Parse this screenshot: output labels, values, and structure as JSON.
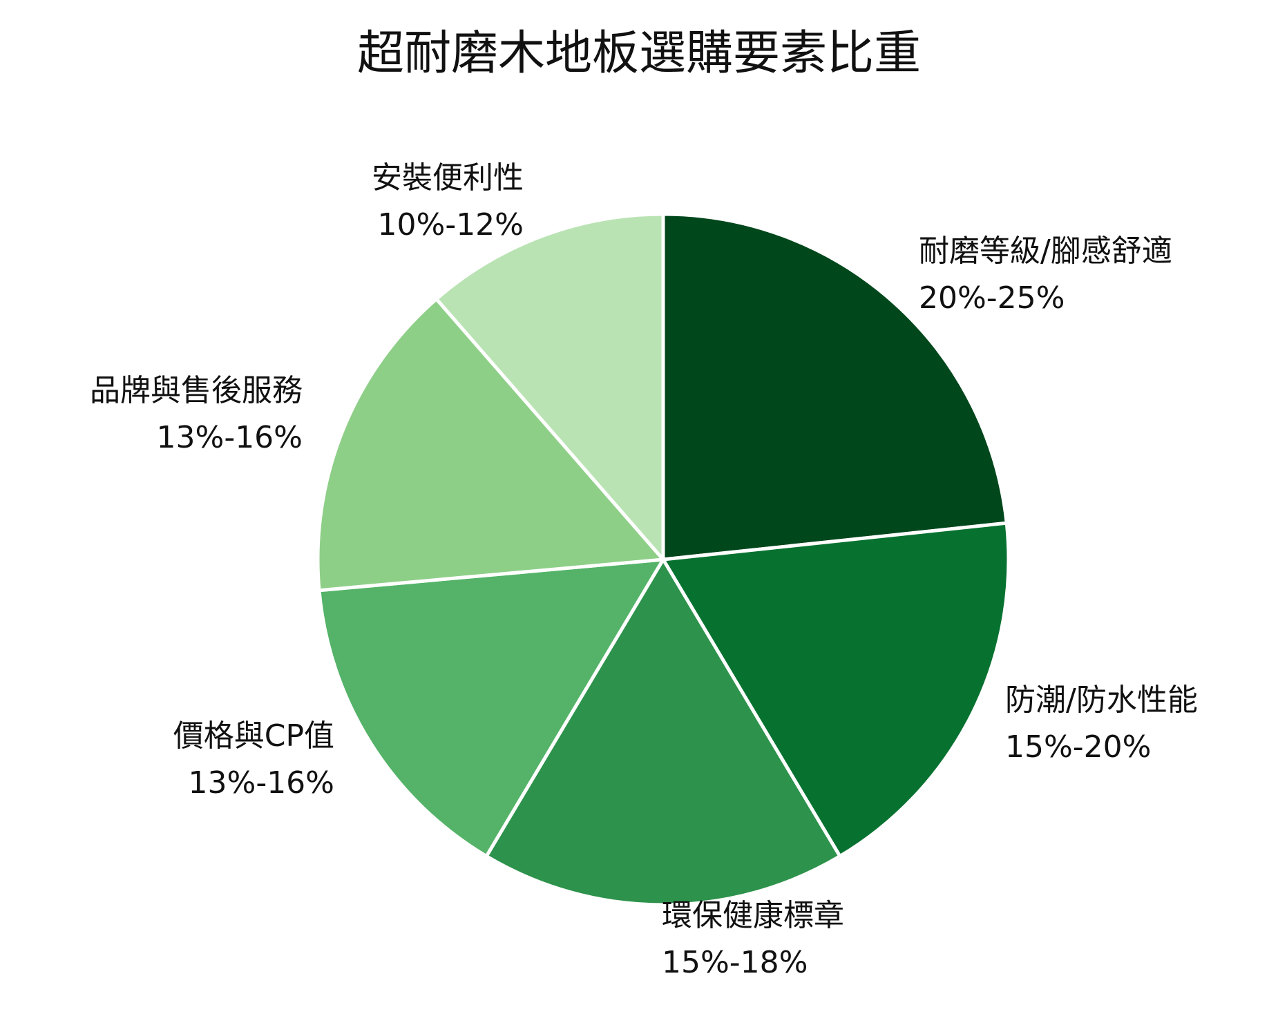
{
  "chart_data": {
    "type": "pie",
    "title": "超耐磨木地板選購要素比重",
    "slices": [
      {
        "label": "耐磨等級/腳感舒適",
        "range": "20%-25%",
        "value": 22.5,
        "color": "#00471c"
      },
      {
        "label": "防潮/防水性能",
        "range": "15%-20%",
        "value": 17.5,
        "color": "#077230"
      },
      {
        "label": "環保健康標章",
        "range": "15%-18%",
        "value": 16.5,
        "color": "#2d924b"
      },
      {
        "label": "價格與CP值",
        "range": "13%-16%",
        "value": 14.5,
        "color": "#54b368"
      },
      {
        "label": "品牌與售後服務",
        "range": "13%-16%",
        "value": 14.5,
        "color": "#8ecf88"
      },
      {
        "label": "安裝便利性",
        "range": "10%-12%",
        "value": 11.0,
        "color": "#bae3b4"
      }
    ],
    "start_angle": "12 o'clock",
    "direction": "clockwise",
    "legend": "none (direct labels)"
  }
}
